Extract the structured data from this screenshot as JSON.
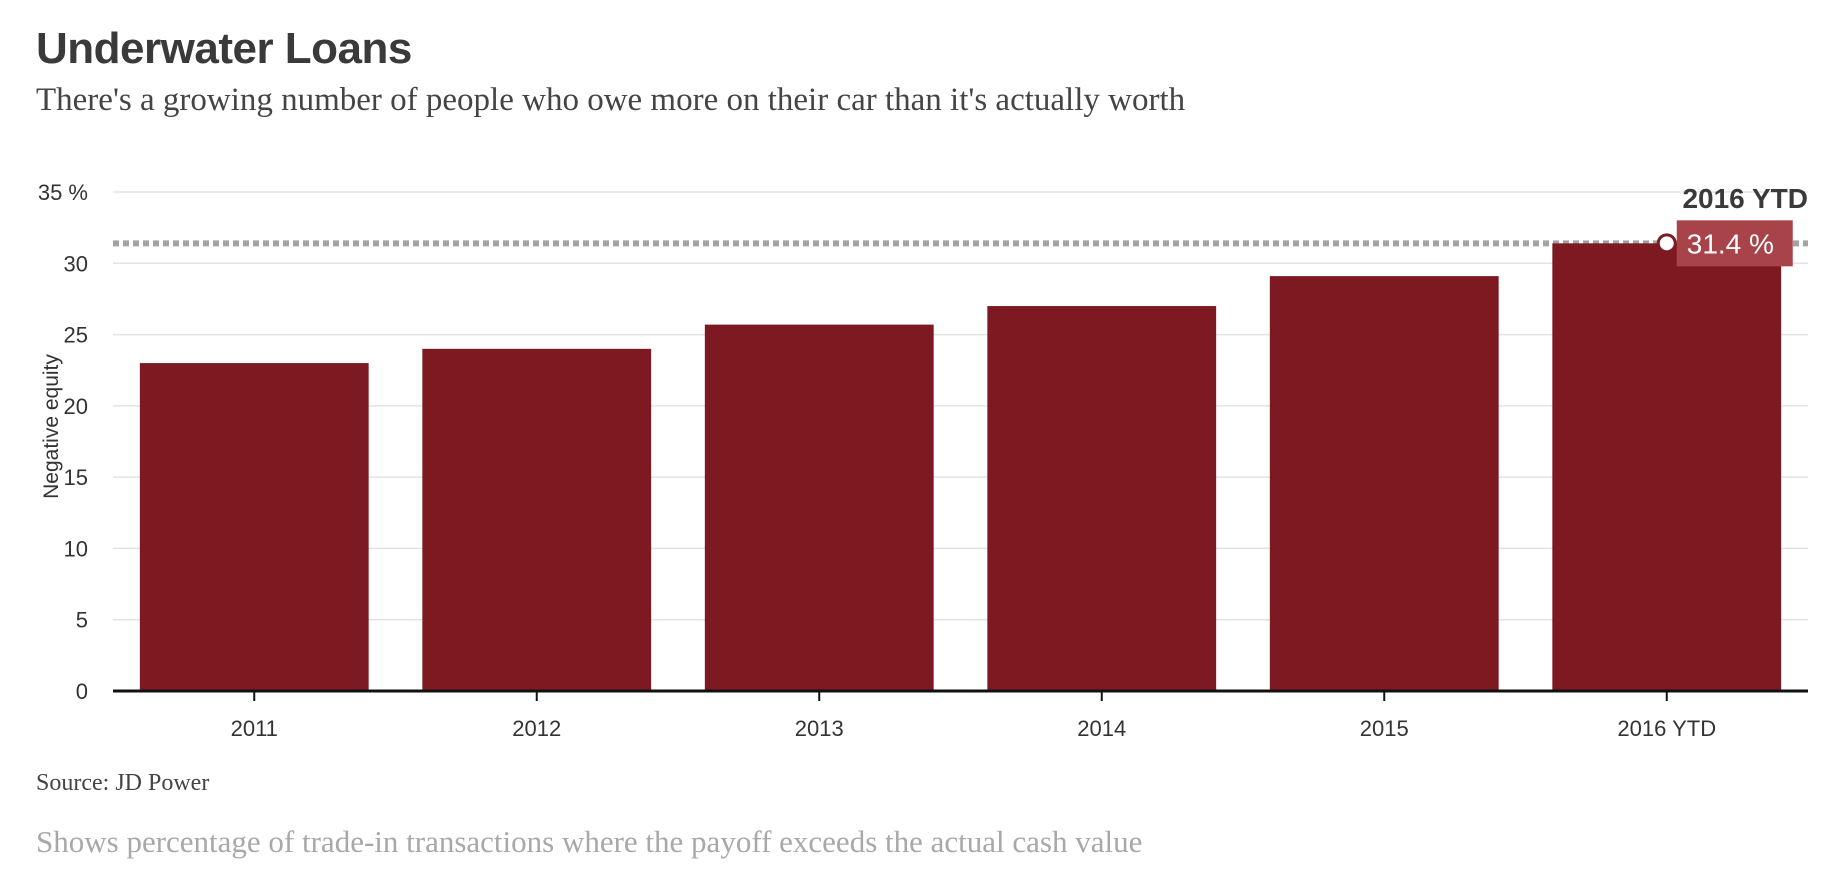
{
  "header": {
    "title": "Underwater Loans",
    "subtitle": "There's a growing number of people who owe more on their car than it's actually worth"
  },
  "footer": {
    "source": "Source: JD Power",
    "note": "Shows percentage of trade-in transactions where the payoff exceeds the actual cash value"
  },
  "colors": {
    "bar": "#7d1a21",
    "callout_box": "#a8434a",
    "grid": "#e3e3e3",
    "axis": "#111111",
    "reference_line": "#a3a3a3"
  },
  "chart_data": {
    "type": "bar",
    "title": "Underwater Loans",
    "ylabel": "Negative equity",
    "xlabel": "",
    "categories": [
      "2011",
      "2012",
      "2013",
      "2014",
      "2015",
      "2016 YTD"
    ],
    "values": [
      23.0,
      24.0,
      25.7,
      27.0,
      29.1,
      31.4
    ],
    "ylim": [
      0,
      35
    ],
    "yticks": [
      0,
      5,
      10,
      15,
      20,
      25,
      30,
      35
    ],
    "ytick_labels": [
      "0",
      "5",
      "10",
      "15",
      "20",
      "25",
      "30",
      "35 %"
    ],
    "grid": true,
    "reference_line": {
      "value": 31.4,
      "style": "dotted"
    },
    "callout": {
      "category": "2016 YTD",
      "title": "2016 YTD",
      "value_label": "31.4 %"
    }
  }
}
